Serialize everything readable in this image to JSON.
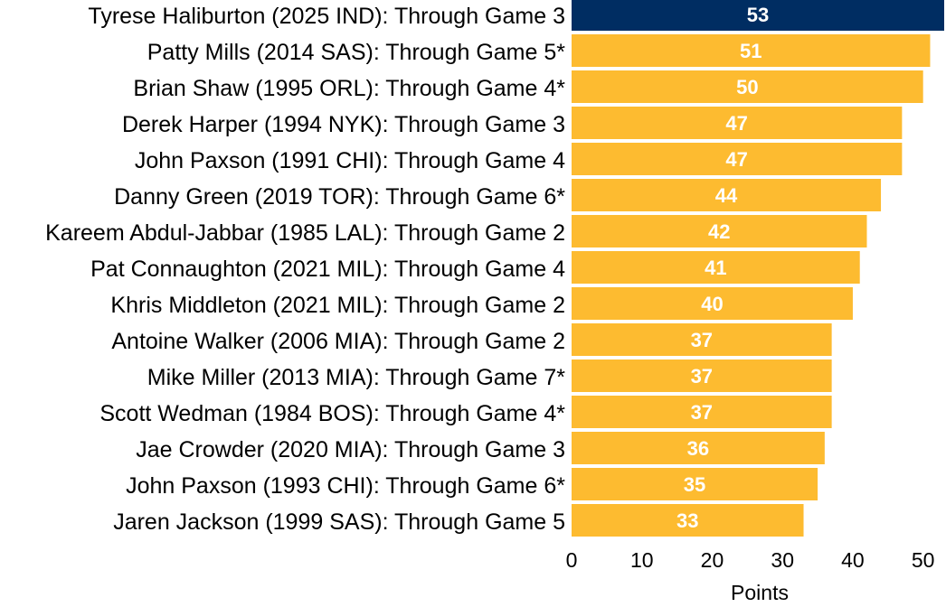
{
  "chart_data": {
    "type": "bar",
    "orientation": "horizontal",
    "title": "",
    "xlabel": "Points",
    "ylabel": "",
    "xlim": [
      0,
      53
    ],
    "xticks": [
      0,
      10,
      20,
      30,
      40,
      50
    ],
    "grid": false,
    "categories": [
      "Tyrese Haliburton (2025 IND): Through Game 3",
      "Patty Mills (2014 SAS): Through Game 5*",
      "Brian Shaw (1995 ORL): Through Game 4*",
      "Derek Harper (1994 NYK): Through Game 3",
      "John Paxson (1991 CHI): Through Game 4",
      "Danny Green (2019 TOR): Through Game 6*",
      "Kareem Abdul-Jabbar (1985 LAL): Through Game 2",
      "Pat Connaughton (2021 MIL): Through Game 4",
      "Khris Middleton (2021 MIL): Through Game 2",
      "Antoine Walker (2006 MIA): Through Game 2",
      "Mike Miller (2013 MIA): Through Game 7*",
      "Scott Wedman (1984 BOS): Through Game 4*",
      "Jae Crowder (2020 MIA): Through Game 3",
      "John Paxson (1993 CHI): Through Game 6*",
      "Jaren Jackson (1999 SAS): Through Game 5"
    ],
    "values": [
      53,
      51,
      50,
      47,
      47,
      44,
      42,
      41,
      40,
      37,
      37,
      37,
      36,
      35,
      33
    ],
    "highlight_index": 0,
    "colors": {
      "highlight": "#002d62",
      "default": "#fdbb30",
      "value_text": "#ffffff"
    }
  }
}
